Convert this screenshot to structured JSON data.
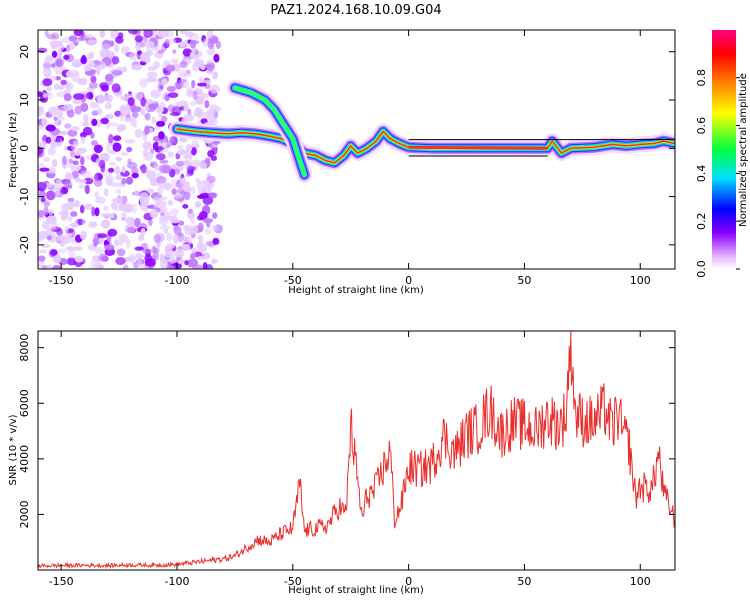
{
  "title": "PAZ1.2024.168.10.09.G04",
  "colors": {
    "snr_line": "#e8302d",
    "frame": "#000000",
    "ridge_core": "#ff2a2a",
    "background": "#ffffff"
  },
  "chart_data": [
    {
      "type": "heatmap",
      "xlabel": "Height of straight line (km)",
      "ylabel": "Frequency (Hz)",
      "xlim": [
        -160,
        115
      ],
      "ylim": [
        -25,
        24.5
      ],
      "xticks": [
        -150,
        -100,
        -50,
        0,
        50,
        100
      ],
      "yticks": [
        -20,
        -10,
        0,
        10,
        20
      ],
      "colorbar": {
        "label": "Normalized spectral amplitude",
        "range": [
          0,
          1
        ],
        "ticks": [
          "0.0",
          "0.2",
          "0.4",
          "0.6",
          "0.8"
        ],
        "colormap": [
          "#ffffff",
          "#e8b8ff",
          "#8a00ff",
          "#0000ff",
          "#00e0ff",
          "#00ff40",
          "#ffff00",
          "#ff8000",
          "#ff0000",
          "#ff0080"
        ]
      },
      "ridge": [
        {
          "x": -100,
          "y": 4.0
        },
        {
          "x": -92,
          "y": 3.5
        },
        {
          "x": -85,
          "y": 3.2
        },
        {
          "x": -78,
          "y": 3.0
        },
        {
          "x": -72,
          "y": 3.2
        },
        {
          "x": -66,
          "y": 3.0
        },
        {
          "x": -60,
          "y": 2.5
        },
        {
          "x": -55,
          "y": 2.0
        },
        {
          "x": -50,
          "y": 1.0
        },
        {
          "x": -45,
          "y": -1.0
        },
        {
          "x": -40,
          "y": -1.5
        },
        {
          "x": -36,
          "y": -2.5
        },
        {
          "x": -32,
          "y": -3.0
        },
        {
          "x": -28,
          "y": -1.5
        },
        {
          "x": -25,
          "y": 0.5
        },
        {
          "x": -22,
          "y": -1.0
        },
        {
          "x": -18,
          "y": 0.0
        },
        {
          "x": -14,
          "y": 1.5
        },
        {
          "x": -11,
          "y": 3.5
        },
        {
          "x": -8,
          "y": 2.0
        },
        {
          "x": -4,
          "y": 1.0
        },
        {
          "x": 0,
          "y": 0.2
        },
        {
          "x": 10,
          "y": 0.0
        },
        {
          "x": 30,
          "y": 0.0
        },
        {
          "x": 50,
          "y": 0.0
        },
        {
          "x": 60,
          "y": 0.0
        },
        {
          "x": 62,
          "y": 1.5
        },
        {
          "x": 66,
          "y": -1.0
        },
        {
          "x": 70,
          "y": 0.0
        },
        {
          "x": 80,
          "y": 0.2
        },
        {
          "x": 88,
          "y": 0.8
        },
        {
          "x": 94,
          "y": 0.5
        },
        {
          "x": 100,
          "y": 0.8
        },
        {
          "x": 106,
          "y": 1.0
        },
        {
          "x": 110,
          "y": 1.5
        },
        {
          "x": 115,
          "y": 1.0
        }
      ],
      "branch": [
        {
          "x": -75,
          "y": 12.5
        },
        {
          "x": -68,
          "y": 11.5
        },
        {
          "x": -62,
          "y": 10.0
        },
        {
          "x": -58,
          "y": 8.0
        },
        {
          "x": -54,
          "y": 5.0
        },
        {
          "x": -50,
          "y": 2.0
        },
        {
          "x": -47,
          "y": -2.5
        },
        {
          "x": -45,
          "y": -5.5
        }
      ]
    },
    {
      "type": "line",
      "xlabel": "Height of straight line (km)",
      "ylabel": "SNR (10 * v/v)",
      "xlim": [
        -160,
        115
      ],
      "ylim": [
        0,
        8600
      ],
      "xticks": [
        -150,
        -100,
        -50,
        0,
        50,
        100
      ],
      "yticks": [
        2000,
        4000,
        6000,
        8000
      ],
      "series": [
        {
          "x": [
            -160,
            -150,
            -140,
            -130,
            -120,
            -110,
            -100,
            -95,
            -90,
            -85,
            -80,
            -75,
            -70,
            -65,
            -60,
            -55,
            -50,
            -47,
            -45,
            -40,
            -35,
            -30,
            -27,
            -25,
            -22,
            -20,
            -18,
            -15,
            -12,
            -8,
            -6,
            -3,
            0,
            5,
            10,
            15,
            20,
            25,
            30,
            35,
            40,
            45,
            50,
            55,
            60,
            65,
            68,
            70,
            72,
            75,
            80,
            85,
            88,
            90,
            93,
            95,
            98,
            100,
            105,
            108,
            110,
            115
          ],
          "y": [
            150,
            160,
            170,
            160,
            180,
            170,
            200,
            250,
            300,
            350,
            400,
            500,
            800,
            1100,
            1000,
            1300,
            1500,
            3100,
            1400,
            1500,
            1600,
            2300,
            2000,
            5200,
            3200,
            1800,
            2700,
            2800,
            3400,
            4300,
            1800,
            2400,
            3700,
            3600,
            3800,
            4800,
            4200,
            4900,
            5100,
            5800,
            4900,
            5300,
            5200,
            5000,
            5500,
            5200,
            5600,
            8600,
            5600,
            5400,
            5300,
            5800,
            5000,
            5700,
            4800,
            4600,
            2600,
            3000,
            2900,
            4200,
            2800,
            1800
          ]
        }
      ]
    }
  ]
}
